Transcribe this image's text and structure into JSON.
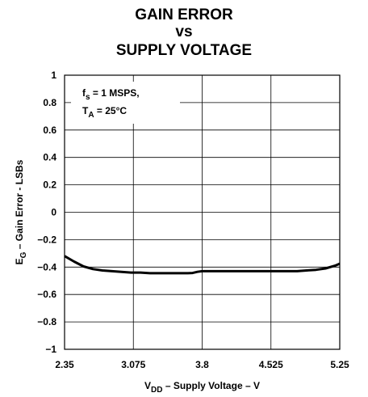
{
  "chart_data": {
    "type": "line",
    "title": [
      "GAIN ERROR",
      "vs",
      "SUPPLY VOLTAGE"
    ],
    "xlabel": {
      "main": "V",
      "sub": "DD",
      "rest": " – Supply Voltage – V"
    },
    "ylabel": {
      "main": "E",
      "sub": "G",
      "rest": " – Gain Error - LSBs"
    },
    "xlim": [
      2.35,
      5.25
    ],
    "ylim": [
      -1,
      1
    ],
    "xticks": [
      2.35,
      3.075,
      3.8,
      4.525,
      5.25
    ],
    "xtick_labels": [
      "2.35",
      "3.075",
      "3.8",
      "4.525",
      "5.25"
    ],
    "yticks": [
      1,
      0.8,
      0.6,
      0.4,
      0.2,
      0,
      -0.2,
      -0.4,
      -0.6,
      -0.8,
      -1
    ],
    "ytick_labels": [
      "1",
      "0.8",
      "0.6",
      "0.4",
      "0.2",
      "0",
      "−0.2",
      "−0.4",
      "−0.6",
      "−0.8",
      "−1"
    ],
    "grid": true,
    "annotation": [
      {
        "main": "f",
        "sub": "s",
        "rest": " = 1 MSPS,"
      },
      {
        "main": "T",
        "sub": "A",
        "rest": " = 25°C"
      }
    ],
    "series": [
      {
        "x": [
          2.35,
          2.45,
          2.55,
          2.65,
          2.75,
          2.85,
          2.95,
          3.05,
          3.15,
          3.25,
          3.35,
          3.45,
          3.55,
          3.65,
          3.7,
          3.75,
          3.8,
          3.9,
          4.0,
          4.2,
          4.4,
          4.6,
          4.8,
          4.9,
          5.0,
          5.1,
          5.2,
          5.25
        ],
        "y": [
          -0.32,
          -0.36,
          -0.395,
          -0.415,
          -0.425,
          -0.43,
          -0.435,
          -0.44,
          -0.44,
          -0.445,
          -0.445,
          -0.445,
          -0.445,
          -0.445,
          -0.443,
          -0.435,
          -0.43,
          -0.43,
          -0.43,
          -0.43,
          -0.43,
          -0.43,
          -0.43,
          -0.425,
          -0.42,
          -0.41,
          -0.39,
          -0.375
        ]
      }
    ]
  }
}
